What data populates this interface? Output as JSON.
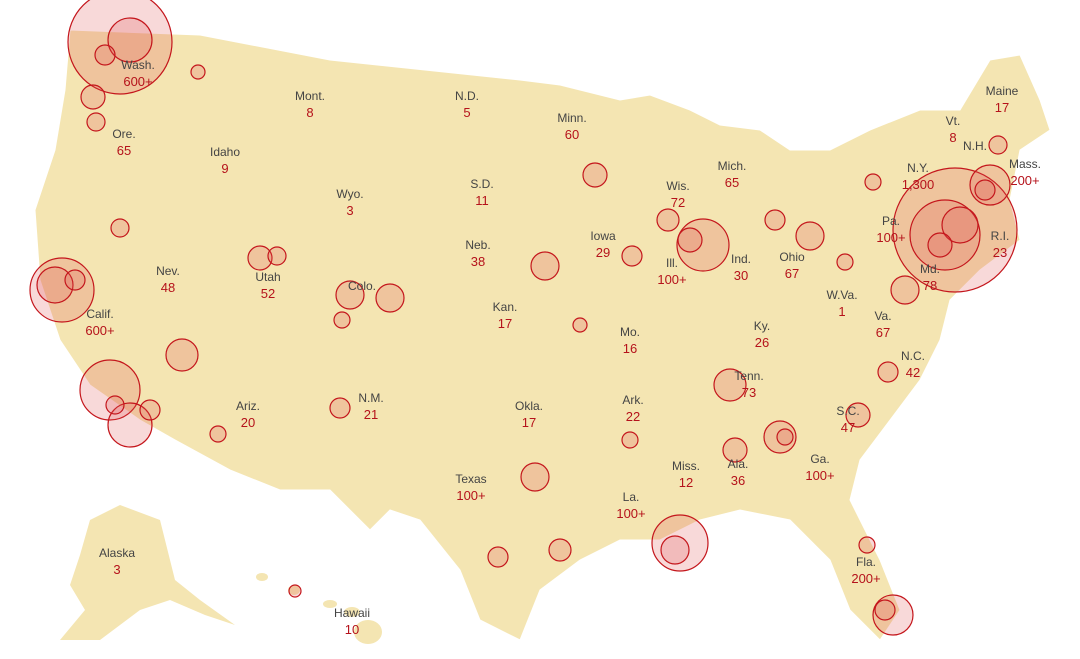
{
  "states": [
    {
      "label": "Wash.",
      "count": "600+"
    },
    {
      "label": "Mont.",
      "count": 8
    },
    {
      "label": "N.D.",
      "count": 5
    },
    {
      "label": "Minn.",
      "count": 60
    },
    {
      "label": "Maine",
      "count": 17
    },
    {
      "label": "Vt.",
      "count": 8
    },
    {
      "label": "N.H."
    },
    {
      "label": "Mass.",
      "count": "200+"
    },
    {
      "label": "Ore.",
      "count": 65
    },
    {
      "label": "Idaho",
      "count": 9
    },
    {
      "label": "Wyo.",
      "count": 3
    },
    {
      "label": "S.D.",
      "count": 11
    },
    {
      "label": "Mich.",
      "count": 65
    },
    {
      "label": "Wis.",
      "count": 72
    },
    {
      "label": "N.Y.",
      "count": "1,300"
    },
    {
      "label": "Pa.",
      "count": "100+"
    },
    {
      "label": "R.I.",
      "count": 23
    },
    {
      "label": "Md.",
      "count": 78
    },
    {
      "label": "Neb.",
      "count": 38
    },
    {
      "label": "Iowa",
      "count": 29
    },
    {
      "label": "Ill.",
      "count": "100+"
    },
    {
      "label": "Ind.",
      "count": 30
    },
    {
      "label": "Ohio",
      "count": 67
    },
    {
      "label": "Nev.",
      "count": 48
    },
    {
      "label": "Utah",
      "count": 52
    },
    {
      "label": "Colo."
    },
    {
      "label": "Calif.",
      "count": "600+"
    },
    {
      "label": "Kan.",
      "count": 17
    },
    {
      "label": "Mo.",
      "count": 16
    },
    {
      "label": "W.Va.",
      "count": 1
    },
    {
      "label": "Va.",
      "count": 67
    },
    {
      "label": "Ky.",
      "count": 26
    },
    {
      "label": "N.C.",
      "count": 42
    },
    {
      "label": "Tenn.",
      "count": 73
    },
    {
      "label": "Ariz.",
      "count": 20
    },
    {
      "label": "N.M.",
      "count": 21
    },
    {
      "label": "Okla.",
      "count": 17
    },
    {
      "label": "Ark.",
      "count": 22
    },
    {
      "label": "S.C.",
      "count": 47
    },
    {
      "label": "Miss.",
      "count": 12
    },
    {
      "label": "Ala.",
      "count": 36
    },
    {
      "label": "Ga.",
      "count": "100+"
    },
    {
      "label": "Texas",
      "count": "100+"
    },
    {
      "label": "La.",
      "count": "100+"
    },
    {
      "label": "Fla.",
      "count": "200+"
    },
    {
      "label": "Alaska",
      "count": 3
    },
    {
      "label": "Hawaii",
      "count": 10
    }
  ]
}
